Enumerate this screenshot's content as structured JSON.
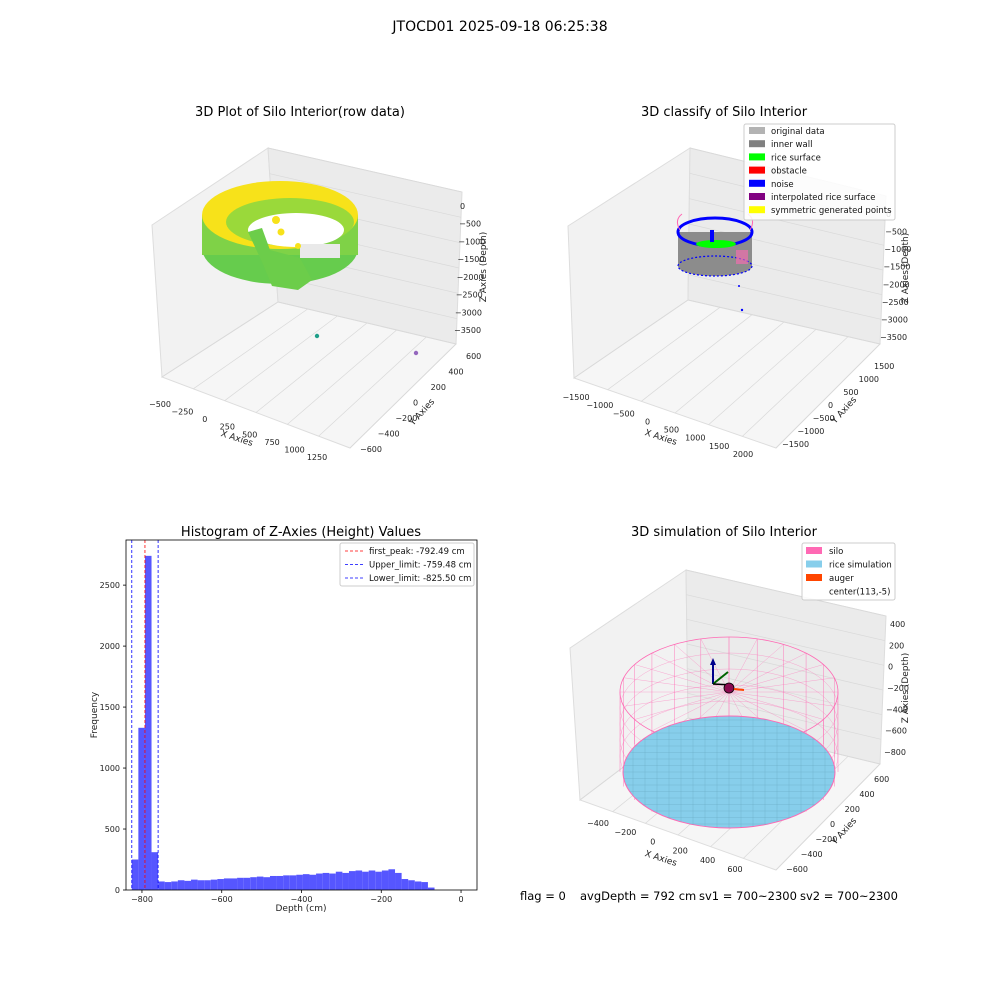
{
  "suptitle": "JTOCD01 2025-09-18 06:25:38",
  "footer": {
    "flag": "flag = 0",
    "avg_depth": "avgDepth = 792 cm",
    "sv1": "sv1 = 700~2300",
    "sv2": "sv2 = 700~2300"
  },
  "colors": {
    "yellow": "#f7e21a",
    "green": "#66cc4d",
    "gray_light": "#b3b3b3",
    "gray_dark": "#808080",
    "lime": "#00ff00",
    "red": "#ff0000",
    "blue": "#0000ff",
    "purple": "#800080",
    "pink": "#ff69b4",
    "skyblue": "#87ceeb",
    "orange": "#ff4500",
    "hist_bar": "#4d4dff"
  },
  "chart_data": [
    {
      "type": "scatter",
      "title": "3D Plot of Silo Interior(row data)",
      "xlabel": "X Axies",
      "ylabel": "Y Axies",
      "zlabel": "Z Axies (Depth)",
      "xticks": [
        "−500",
        "−250",
        "0",
        "250",
        "500",
        "750",
        "1000",
        "1250"
      ],
      "yticks": [
        "−600",
        "−400",
        "−200",
        "0",
        "200",
        "400",
        "600"
      ],
      "zticks": [
        "0",
        "−500",
        "−1000",
        "−1500",
        "−2000",
        "−2500",
        "−3000",
        "−3500"
      ],
      "colormap": "viridis"
    },
    {
      "type": "scatter",
      "title": "3D classify of Silo Interior",
      "xlabel": "X Axies",
      "ylabel": "Y Axies",
      "zlabel": "Z Axies (Depth)",
      "xticks": [
        "−1500",
        "−1000",
        "−500",
        "0",
        "500",
        "1000",
        "1500",
        "2000"
      ],
      "yticks": [
        "−1500",
        "−1000",
        "−500",
        "0",
        "500",
        "1000",
        "1500"
      ],
      "zticks": [
        "0",
        "−500",
        "−1000",
        "−1500",
        "−2000",
        "−2500",
        "−3000",
        "−3500"
      ],
      "legend_position": "top-right",
      "legend": [
        {
          "label": "original data",
          "color": "#b3b3b3"
        },
        {
          "label": "inner wall",
          "color": "#808080"
        },
        {
          "label": "rice surface",
          "color": "#00ff00"
        },
        {
          "label": "obstacle",
          "color": "#ff0000"
        },
        {
          "label": "noise",
          "color": "#0000ff"
        },
        {
          "label": "interpolated rice surface",
          "color": "#800080"
        },
        {
          "label": "symmetric generated points",
          "color": "#ffff00"
        }
      ]
    },
    {
      "type": "bar",
      "title": "Histogram of Z-Axies (Height) Values",
      "xlabel": "Depth (cm)",
      "ylabel": "Frequency",
      "xlim": [
        -840,
        40
      ],
      "ylim": [
        0,
        2870
      ],
      "xticks": [
        -800,
        -600,
        -400,
        -200,
        0
      ],
      "xtick_labels": [
        "−800",
        "−600",
        "−400",
        "−200",
        "0"
      ],
      "yticks": [
        0,
        500,
        1000,
        1500,
        2000,
        2500
      ],
      "bin_start": -825.5,
      "bin_width": 16.5,
      "values": [
        250,
        1330,
        2740,
        310,
        70,
        65,
        70,
        80,
        75,
        85,
        80,
        80,
        85,
        90,
        95,
        95,
        100,
        100,
        105,
        110,
        105,
        115,
        115,
        120,
        120,
        125,
        130,
        125,
        135,
        140,
        135,
        150,
        140,
        155,
        160,
        150,
        160,
        150,
        160,
        170,
        140,
        90,
        80,
        70,
        65,
        20
      ],
      "vlines": [
        {
          "label": "first_peak: -792.49 cm",
          "x": -792.49,
          "color": "#ff0000"
        },
        {
          "label": "Upper_limit: -759.48 cm",
          "x": -759.48,
          "color": "#0000ff"
        },
        {
          "label": "Lower_limit: -825.50 cm",
          "x": -825.5,
          "color": "#0000ff"
        }
      ],
      "legend_position": "top-right"
    },
    {
      "type": "scatter",
      "title": "3D simulation of Silo Interior",
      "xlabel": "X Axies",
      "ylabel": "Y Axies",
      "zlabel": "Z Axies (Depth)",
      "xticks": [
        "−400",
        "−200",
        "0",
        "200",
        "400",
        "600"
      ],
      "yticks": [
        "−600",
        "−400",
        "−200",
        "0",
        "200",
        "400",
        "600"
      ],
      "zticks": [
        "400",
        "200",
        "0",
        "−200",
        "−400",
        "−600",
        "−800"
      ],
      "legend_position": "top-right",
      "legend": [
        {
          "label": "silo",
          "color": "#ff69b4"
        },
        {
          "label": "rice simulation",
          "color": "#87ceeb"
        },
        {
          "label": "auger",
          "color": "#ff4500"
        },
        {
          "label": "center(113,-5)",
          "color": "#ffffff"
        }
      ]
    }
  ]
}
